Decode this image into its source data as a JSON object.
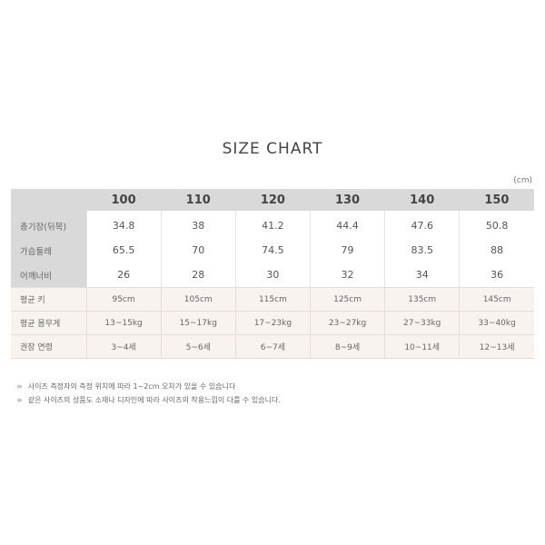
{
  "title": "SIZE CHART",
  "unit": "(cm)",
  "sizes": [
    "100",
    "110",
    "120",
    "130",
    "140",
    "150"
  ],
  "measurements": [
    {
      "label": "총기장(뒤목)",
      "values": [
        "34.8",
        "38",
        "41.2",
        "44.4",
        "47.6",
        "50.8"
      ]
    },
    {
      "label": "가슴둘레",
      "values": [
        "65.5",
        "70",
        "74.5",
        "79",
        "83.5",
        "88"
      ]
    },
    {
      "label": "어깨너비",
      "values": [
        "26",
        "28",
        "30",
        "32",
        "34",
        "36"
      ]
    }
  ],
  "averages": [
    {
      "label": "평균 키",
      "values": [
        "95cm",
        "105cm",
        "115cm",
        "125cm",
        "135cm",
        "145cm"
      ]
    },
    {
      "label": "평균 몸무게",
      "values": [
        "13~15kg",
        "15~17kg",
        "17~23kg",
        "23~27kg",
        "27~33kg",
        "33~40kg"
      ]
    },
    {
      "label": "권장 연령",
      "values": [
        "3~4세",
        "5~6세",
        "6~7세",
        "8~9세",
        "10~11세",
        "12~13세"
      ]
    }
  ],
  "notes": [
    "사이즈 측정자의 측정 위치에 따라 1~2cm 오차가 있을 수 있습니다",
    "같은 사이즈의 상품도 소재나 디자인에 따라 사이즈의 착용느낌이 다를 수 있습니다."
  ],
  "note_bullet": "≡"
}
